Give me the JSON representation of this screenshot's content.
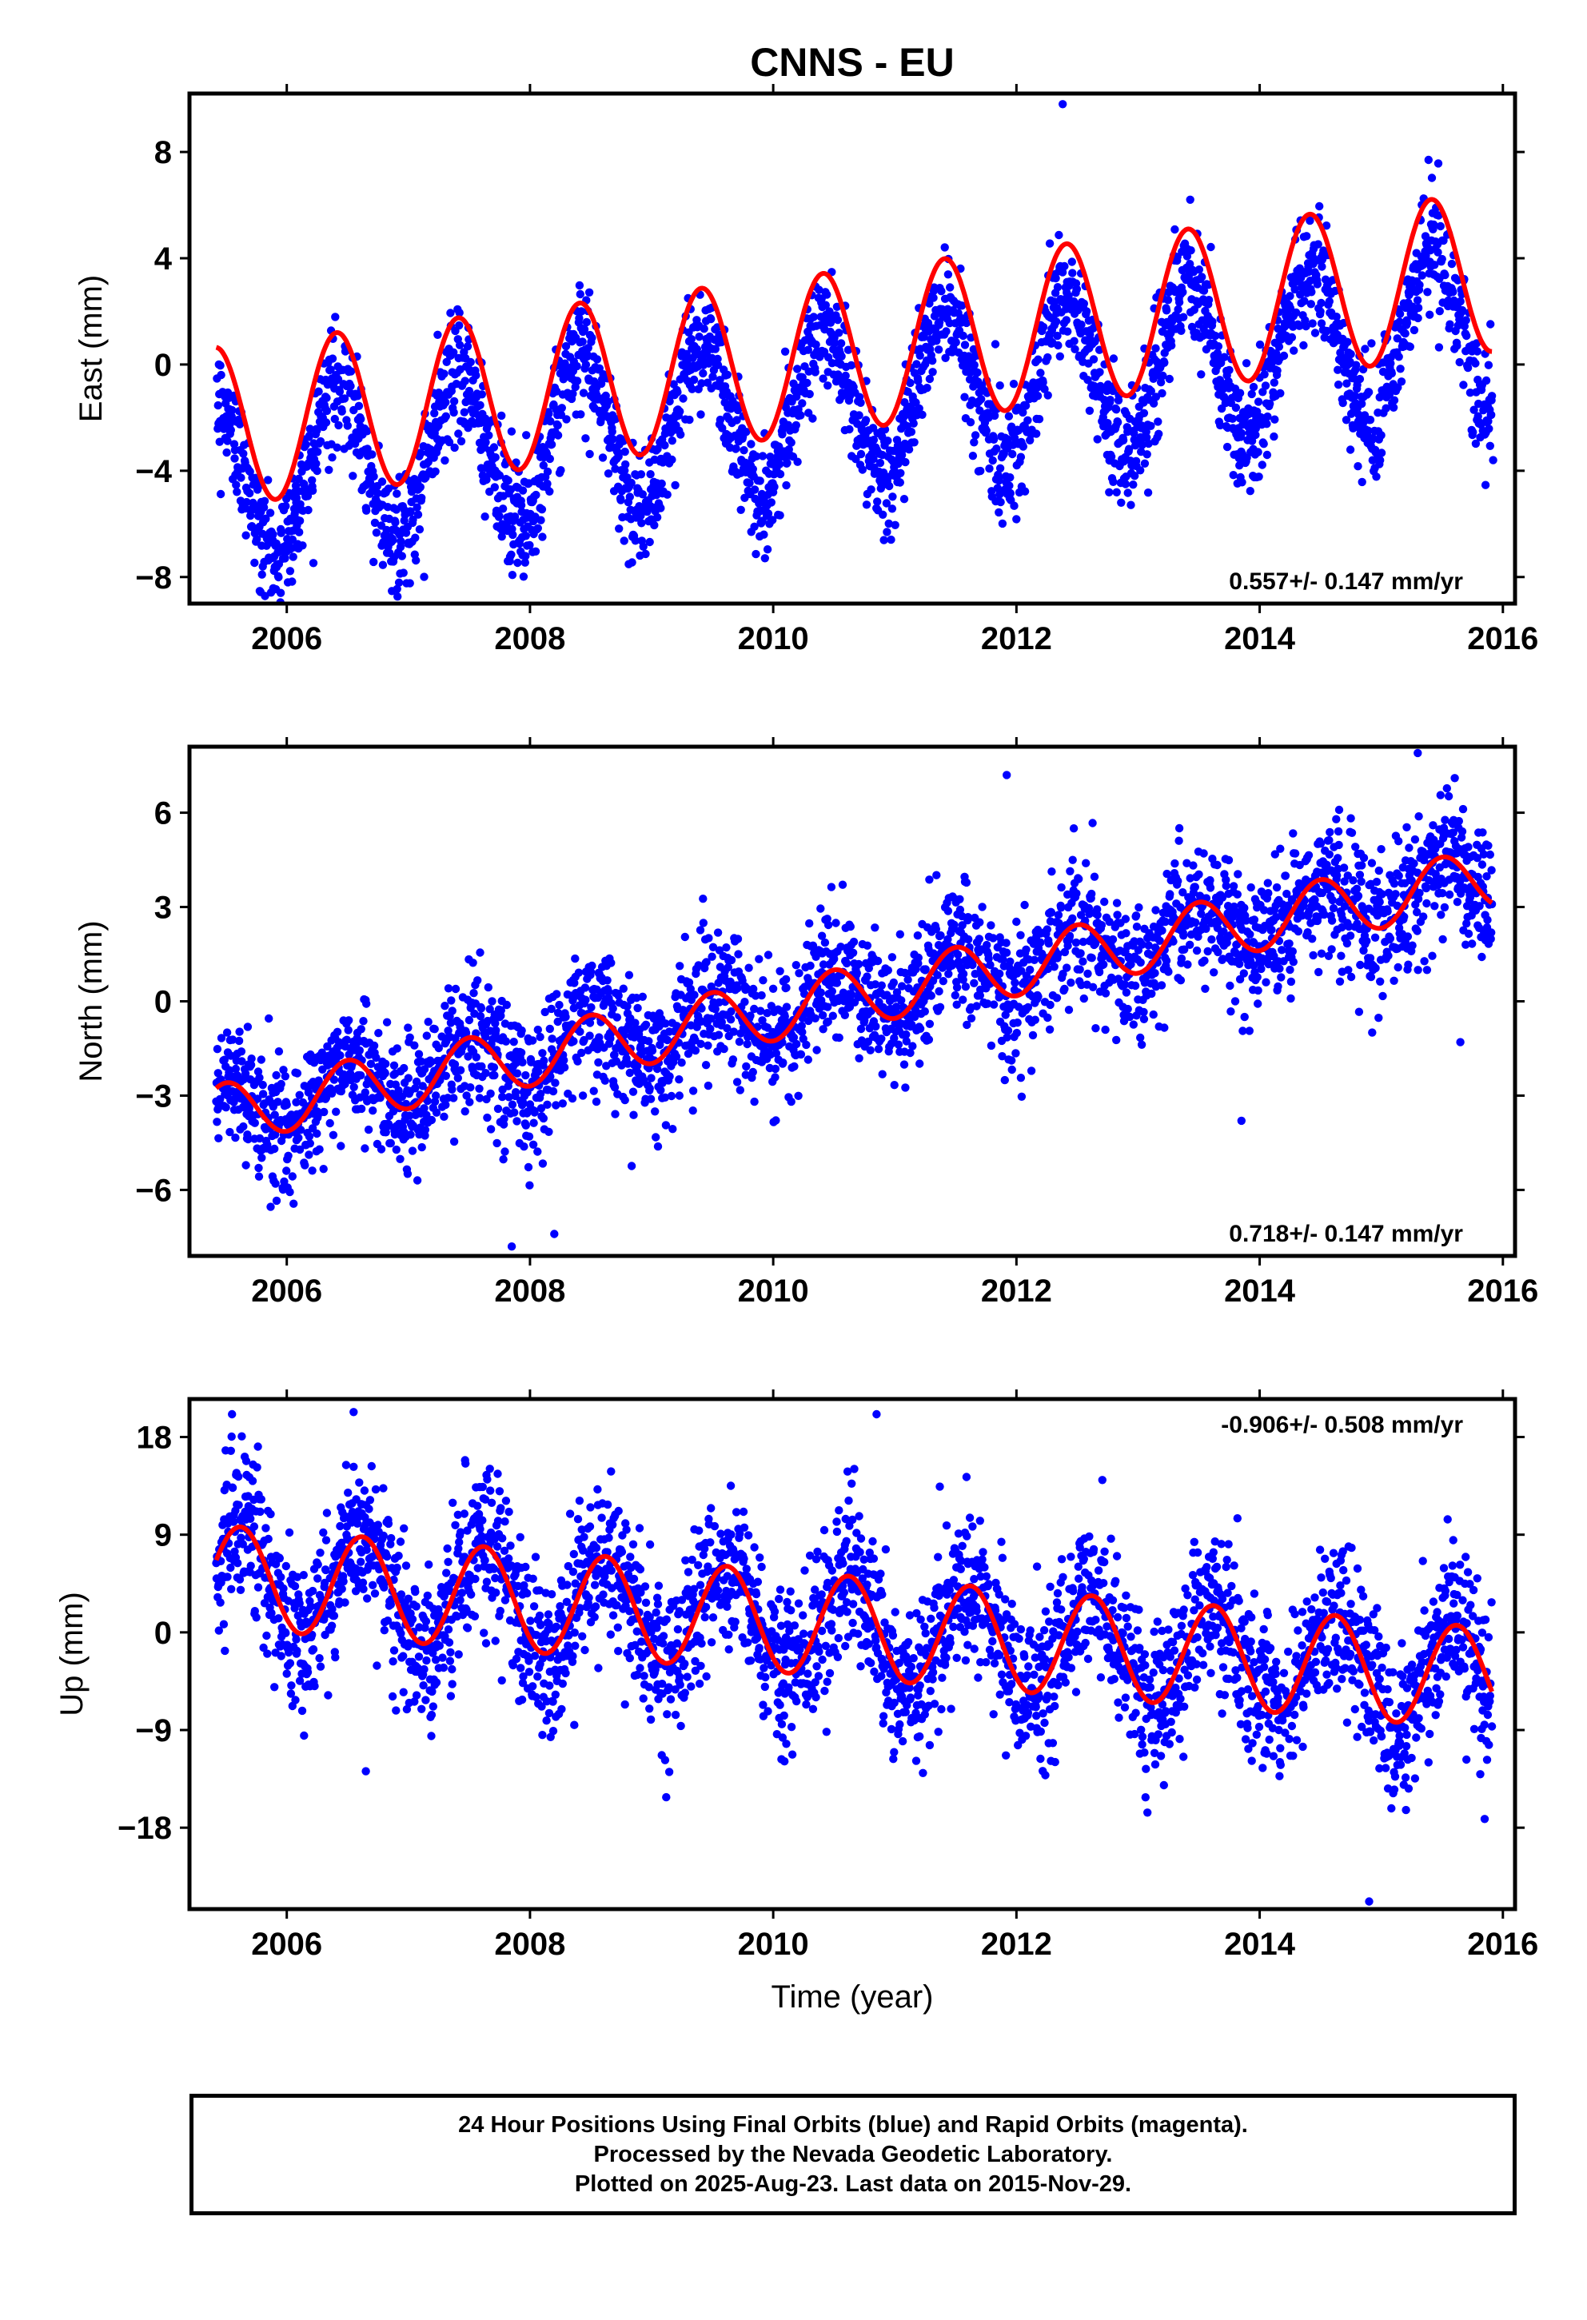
{
  "title": "CNNS - EU",
  "colors": {
    "points": "#0000ff",
    "fit": "#ff0000",
    "frame": "#000000"
  },
  "chart_data": [
    {
      "type": "scatter",
      "id": "east",
      "ylabel": "East (mm)",
      "xlabel": "",
      "xlim": [
        2005.2,
        2016.1
      ],
      "ylim": [
        -9,
        10.2
      ],
      "xticks": [
        2006,
        2008,
        2010,
        2012,
        2014,
        2016
      ],
      "yticks": [
        -8,
        -4,
        0,
        4,
        8
      ],
      "ytick_labels": [
        "−8",
        "−4",
        "0",
        "4",
        "8"
      ],
      "rate_label": "0.557+/- 0.147 mm/yr",
      "rate_position": "bottom-right",
      "data_start": 2005.42,
      "data_end": 2015.91,
      "series": [
        {
          "name": "",
          "kind": "points",
          "trend": [
            -4.4,
            0.557
          ],
          "seasonal_amplitude": 3.0,
          "peak_phase": 0.41,
          "scatter_sd": 1.1,
          "outliers": [
            [
              2012.38,
              9.8
            ],
            [
              2015.92,
              -3.6
            ],
            [
              2005.95,
              -8.6
            ],
            [
              2009.82,
              -6.3
            ]
          ]
        },
        {
          "name": "",
          "kind": "fit-curve",
          "trend": [
            -2.35,
            0.557
          ],
          "seasonal_amplitude": 3.0,
          "peak_phase": 0.41
        }
      ]
    },
    {
      "type": "scatter",
      "id": "north",
      "ylabel": "North (mm)",
      "xlabel": "",
      "xlim": [
        2005.2,
        2016.1
      ],
      "ylim": [
        -8.1,
        8.1
      ],
      "xticks": [
        2006,
        2008,
        2010,
        2012,
        2014,
        2016
      ],
      "yticks": [
        -6,
        -3,
        0,
        3,
        6
      ],
      "ytick_labels": [
        "−6",
        "−3",
        "0",
        "3",
        "6"
      ],
      "rate_label": "0.718+/- 0.147 mm/yr",
      "rate_position": "bottom-right",
      "data_start": 2005.42,
      "data_end": 2015.91,
      "series": [
        {
          "name": "",
          "kind": "points",
          "trend": [
            -3.6,
            0.718
          ],
          "seasonal_amplitude": 0.95,
          "peak_phase": 0.5,
          "scatter_sd": 1.05,
          "outliers": [
            [
              2011.92,
              7.2
            ],
            [
              2015.3,
              7.9
            ],
            [
              2013.85,
              -3.8
            ],
            [
              2007.85,
              -7.8
            ],
            [
              2008.2,
              -7.4
            ],
            [
              2015.65,
              -1.3
            ]
          ]
        },
        {
          "name": "",
          "kind": "fit-curve",
          "trend": [
            -3.6,
            0.718
          ],
          "seasonal_amplitude": 0.95,
          "peak_phase": 0.5
        }
      ]
    },
    {
      "type": "scatter",
      "id": "up",
      "ylabel": "Up (mm)",
      "xlabel": "Time (year)",
      "xlim": [
        2005.2,
        2016.1
      ],
      "ylim": [
        -25.5,
        21.5
      ],
      "xticks": [
        2006,
        2008,
        2010,
        2012,
        2014,
        2016
      ],
      "yticks": [
        -18,
        -9,
        0,
        9,
        18
      ],
      "ytick_labels": [
        "−18",
        "−9",
        "0",
        "9",
        "18"
      ],
      "rate_label": "-0.906+/- 0.508 mm/yr",
      "rate_position": "top-right",
      "data_start": 2005.42,
      "data_end": 2015.91,
      "series": [
        {
          "name": "",
          "kind": "points",
          "trend": [
            5.2,
            -0.906
          ],
          "seasonal_amplitude": 4.7,
          "peak_phase": 0.62,
          "scatter_sd": 3.6,
          "outliers": [
            [
              2005.55,
              20.1
            ],
            [
              2006.55,
              20.3
            ],
            [
              2010.85,
              20.1
            ],
            [
              2006.65,
              -12.8
            ],
            [
              2014.9,
              -24.8
            ],
            [
              2015.85,
              -17.2
            ]
          ]
        },
        {
          "name": "",
          "kind": "fit-curve",
          "trend": [
            5.2,
            -0.906
          ],
          "seasonal_amplitude": 4.7,
          "peak_phase": 0.62
        }
      ]
    }
  ],
  "footer": {
    "line1": "24 Hour Positions Using Final Orbits (blue) and Rapid Orbits (magenta).",
    "line2": "Processed by the Nevada Geodetic Laboratory.",
    "line3": "Plotted on 2025-Aug-23. Last data on 2015-Nov-29."
  }
}
